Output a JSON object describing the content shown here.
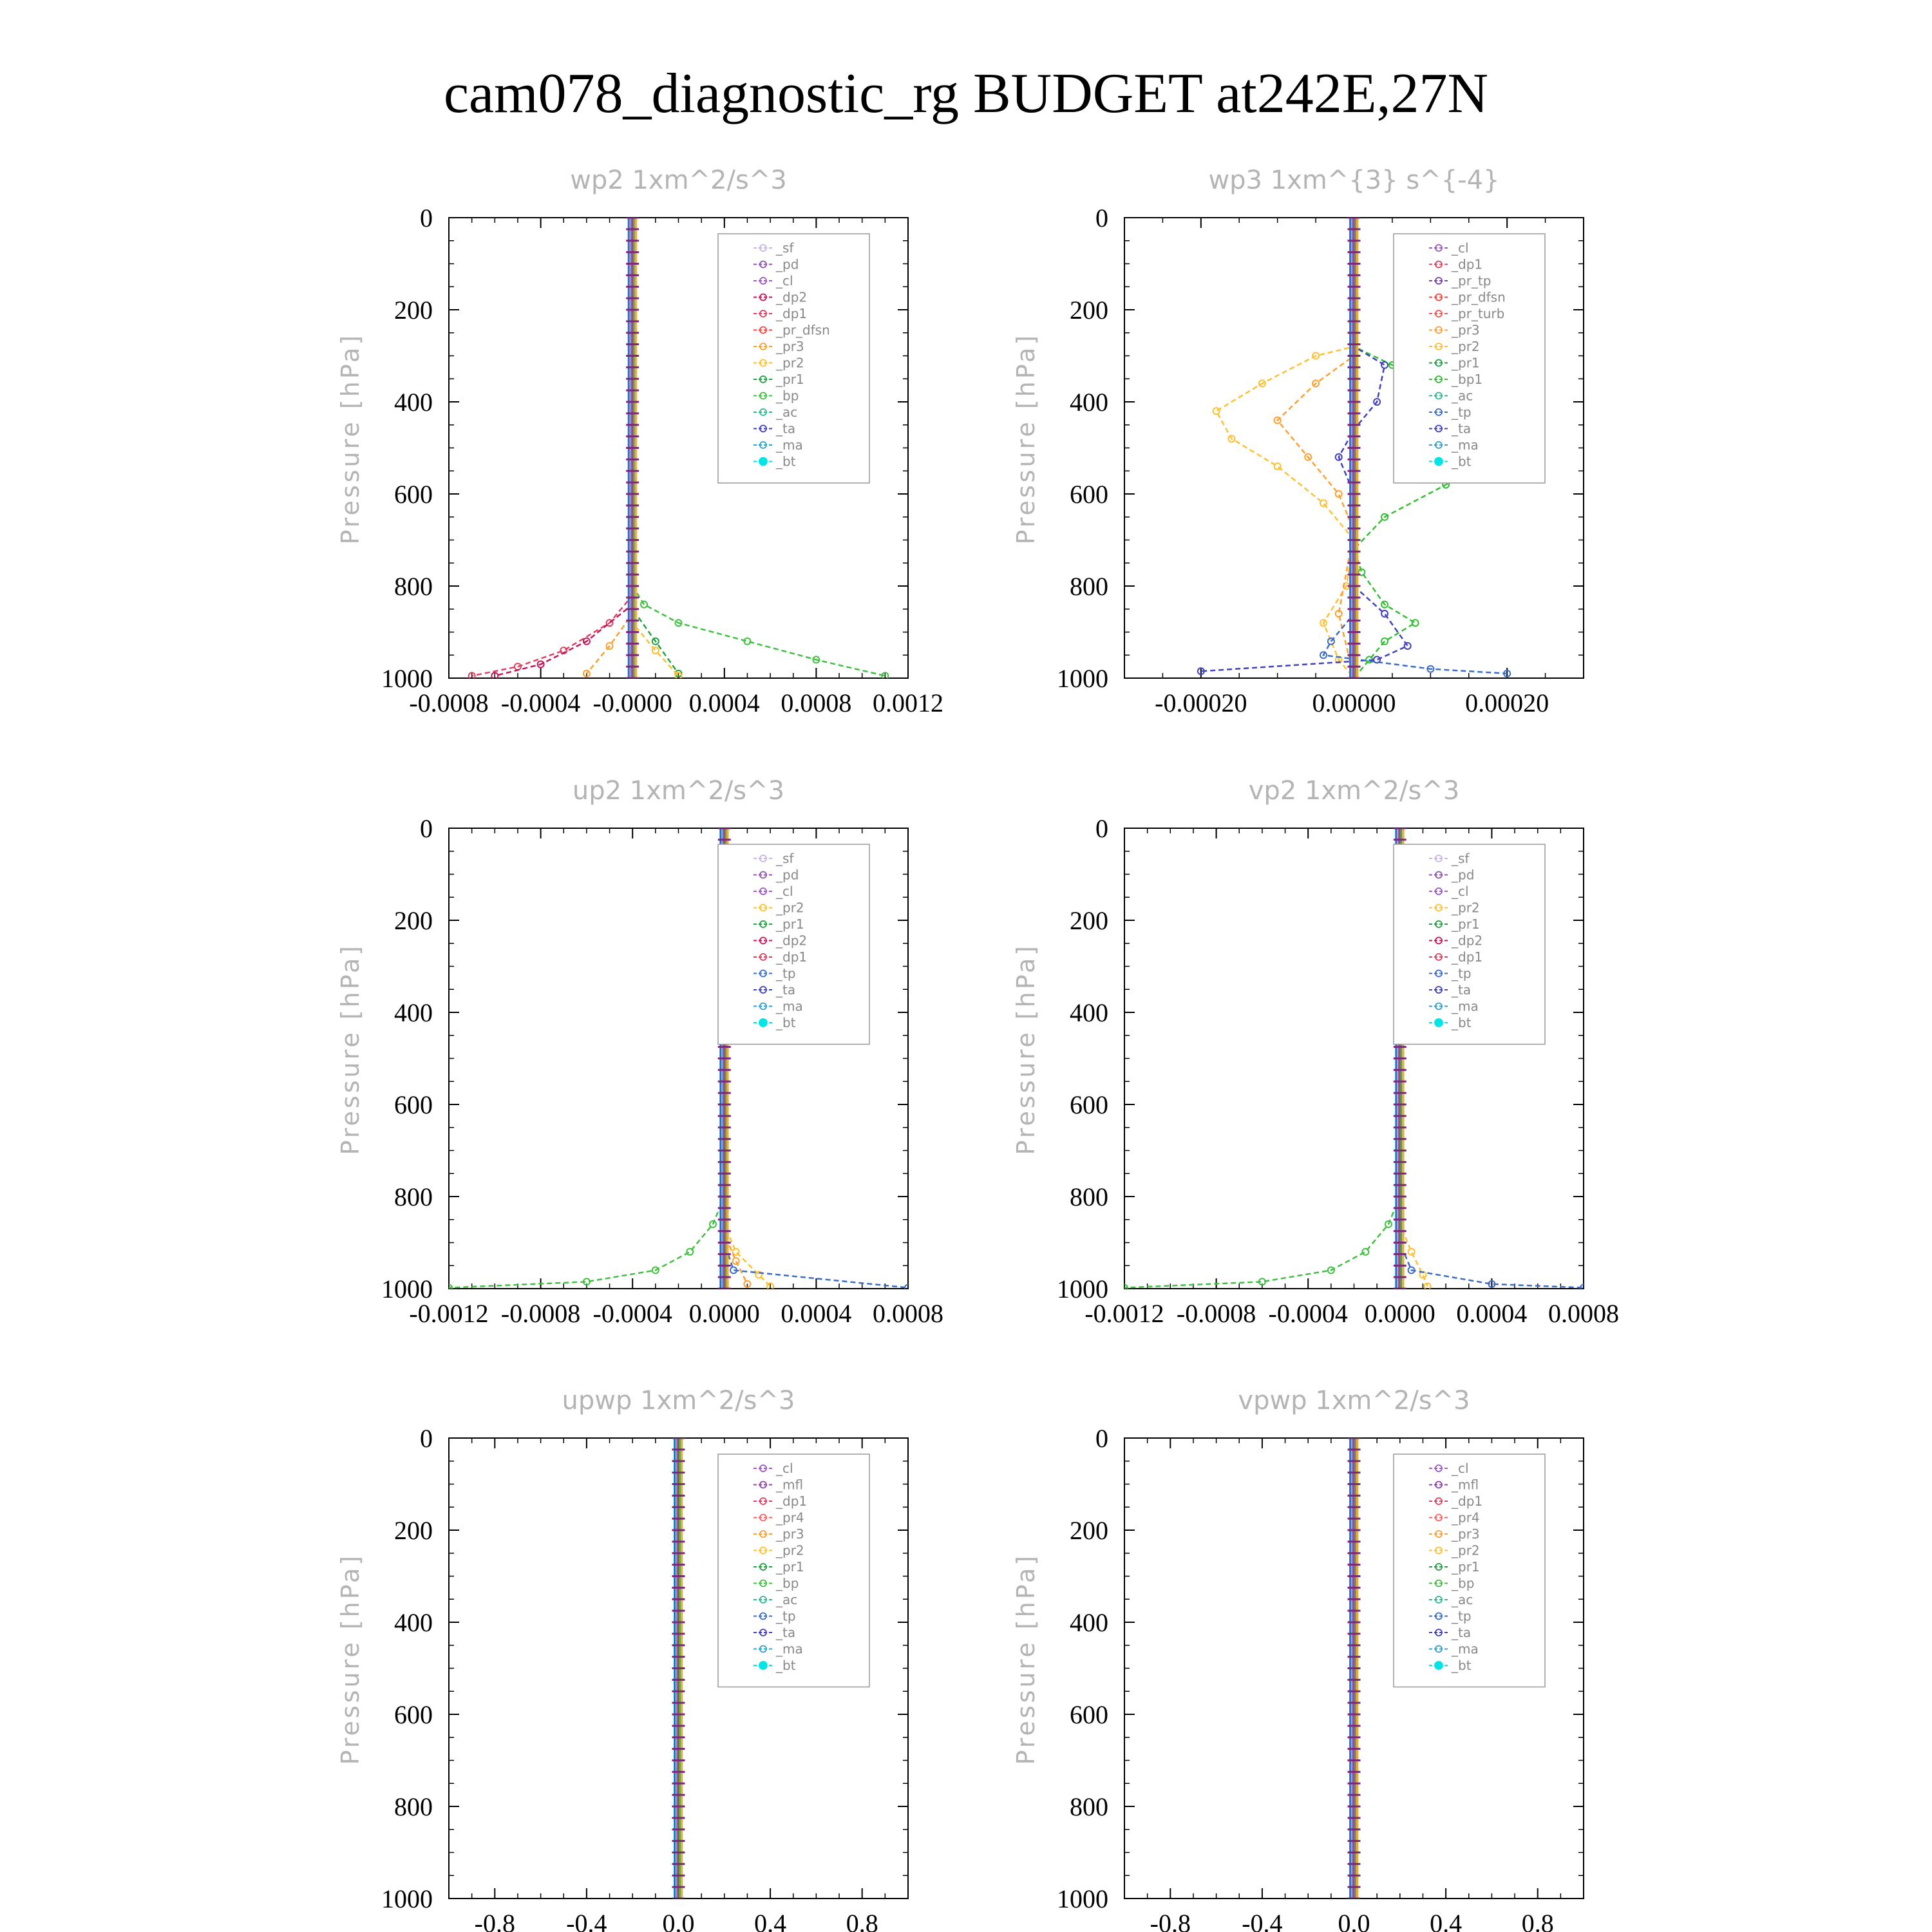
{
  "title": "cam078_diagnostic_rg  BUDGET at242E,27N",
  "colors": {
    "sf": "#c9b6e6",
    "pd": "#8f54b0",
    "cl": "#9b59c6",
    "dp2": "#c2185b",
    "dp1": "#e04060",
    "pr_dfsn": "#ff4040",
    "pr3": "#ff9f30",
    "pr2": "#ffc030",
    "pr1": "#20a040",
    "bp": "#40c040",
    "ac": "#30b890",
    "tp": "#3a6cc8",
    "ta": "#4040c0",
    "ma": "#30a0d0",
    "bt": "#00e5e5",
    "pr4": "#ff6060",
    "mfl": "#8e44ad",
    "pr_tp": "#7a3fb0",
    "pr_turb": "#ff5050",
    "bp1": "#30c030"
  },
  "chart_data": [
    {
      "type": "line",
      "title": "wp2   1xm^2/s^3",
      "ylabel": "Pressure [hPa]",
      "xlim": [
        -0.0008,
        0.0012
      ],
      "ylim": [
        1000,
        0
      ],
      "yticks": [
        "0",
        "200",
        "400",
        "600",
        "800",
        "1000"
      ],
      "xticks": [
        "-0.0008",
        "-0.0004",
        "-0.0000",
        "0.0004",
        "0.0008",
        "0.0012"
      ],
      "xtick_values": [
        -0.0008,
        -0.0004,
        0.0,
        0.0004,
        0.0008,
        0.0012
      ],
      "legend": [
        "_sf",
        "_pd",
        "_cl",
        "_dp2",
        "_dp1",
        "_pr_dfsn",
        "_pr3",
        "_pr2",
        "_pr1",
        "_bp",
        "_ac",
        "_ta",
        "_ma",
        "_bt"
      ],
      "legend_position": "top-right",
      "series": [
        {
          "name": "_bp",
          "color": "#40c040",
          "points": [
            [
              0,
              0
            ],
            [
              0,
              800
            ],
            [
              5e-05,
              840
            ],
            [
              0.0002,
              880
            ],
            [
              0.0005,
              920
            ],
            [
              0.0008,
              960
            ],
            [
              0.0011,
              995
            ]
          ]
        },
        {
          "name": "_pr1",
          "color": "#20a040",
          "points": [
            [
              0,
              0
            ],
            [
              0,
              850
            ],
            [
              0.0001,
              920
            ],
            [
              0.0002,
              990
            ]
          ]
        },
        {
          "name": "_pr2",
          "color": "#ffc030",
          "points": [
            [
              0,
              0
            ],
            [
              0,
              880
            ],
            [
              0.0001,
              940
            ],
            [
              0.0002,
              995
            ]
          ]
        },
        {
          "name": "_dp1",
          "color": "#e04060",
          "points": [
            [
              0,
              0
            ],
            [
              0,
              820
            ],
            [
              -0.0001,
              880
            ],
            [
              -0.0003,
              940
            ],
            [
              -0.0005,
              975
            ],
            [
              -0.0007,
              995
            ]
          ]
        },
        {
          "name": "_dp2",
          "color": "#c2185b",
          "points": [
            [
              0,
              0
            ],
            [
              0,
              840
            ],
            [
              -0.0002,
              920
            ],
            [
              -0.0004,
              970
            ],
            [
              -0.0006,
              995
            ]
          ]
        },
        {
          "name": "_pr3",
          "color": "#ff9f30",
          "points": [
            [
              0,
              0
            ],
            [
              0,
              860
            ],
            [
              -0.0001,
              930
            ],
            [
              -0.0002,
              990
            ]
          ]
        },
        {
          "name": "_ta",
          "color": "#4040c0",
          "points": [
            [
              0,
              0
            ],
            [
              0,
              1000
            ]
          ]
        }
      ]
    },
    {
      "type": "line",
      "title": "wp3   1xm^{3} s^{-4}",
      "ylabel": "Pressure [hPa]",
      "xlim": [
        -0.0003,
        0.0003
      ],
      "ylim": [
        1000,
        0
      ],
      "yticks": [
        "0",
        "200",
        "400",
        "600",
        "800",
        "1000"
      ],
      "xticks": [
        "-0.00020",
        "0.00000",
        "0.00020"
      ],
      "xtick_values": [
        -0.0002,
        0.0,
        0.0002
      ],
      "legend": [
        "_cl",
        "_dp1",
        "_pr_tp",
        "_pr_dfsn",
        "_pr_turb",
        "_pr3",
        "_pr2",
        "_pr1",
        "_bp1",
        "_ac",
        "_tp",
        "_ta",
        "_ma",
        "_bt"
      ],
      "legend_position": "top-right",
      "series": [
        {
          "name": "_bp1",
          "color": "#30c030",
          "points": [
            [
              0,
              0
            ],
            [
              0,
              280
            ],
            [
              5e-05,
              320
            ],
            [
              0.00012,
              380
            ],
            [
              0.0002,
              440
            ],
            [
              0.00022,
              480
            ],
            [
              0.00019,
              520
            ],
            [
              0.00012,
              580
            ],
            [
              4e-05,
              650
            ],
            [
              0,
              720
            ],
            [
              1e-05,
              770
            ],
            [
              4e-05,
              840
            ],
            [
              8e-05,
              880
            ],
            [
              4e-05,
              920
            ],
            [
              2e-05,
              960
            ],
            [
              0,
              1000
            ]
          ]
        },
        {
          "name": "_pr2",
          "color": "#ffc030",
          "points": [
            [
              0,
              0
            ],
            [
              0,
              280
            ],
            [
              -5e-05,
              300
            ],
            [
              -0.00012,
              360
            ],
            [
              -0.00018,
              420
            ],
            [
              -0.00016,
              480
            ],
            [
              -0.0001,
              540
            ],
            [
              -4e-05,
              620
            ],
            [
              0,
              700
            ],
            [
              -1e-05,
              800
            ],
            [
              -4e-05,
              880
            ],
            [
              -2e-05,
              960
            ],
            [
              0,
              1000
            ]
          ]
        },
        {
          "name": "_pr3",
          "color": "#ff9f30",
          "points": [
            [
              0,
              0
            ],
            [
              0,
              300
            ],
            [
              -5e-05,
              360
            ],
            [
              -0.0001,
              440
            ],
            [
              -6e-05,
              520
            ],
            [
              -2e-05,
              600
            ],
            [
              0,
              680
            ],
            [
              -2e-05,
              860
            ],
            [
              0,
              1000
            ]
          ]
        },
        {
          "name": "_ta",
          "color": "#4040c0",
          "points": [
            [
              0,
              0
            ],
            [
              0,
              280
            ],
            [
              4e-05,
              320
            ],
            [
              3e-05,
              400
            ],
            [
              0,
              460
            ],
            [
              -2e-05,
              520
            ],
            [
              0,
              600
            ],
            [
              0,
              800
            ],
            [
              4e-05,
              860
            ],
            [
              7e-05,
              930
            ],
            [
              3e-05,
              960
            ],
            [
              -0.0002,
              985
            ]
          ]
        },
        {
          "name": "_tp",
          "color": "#3a6cc8",
          "points": [
            [
              0,
              0
            ],
            [
              0,
              860
            ],
            [
              -3e-05,
              920
            ],
            [
              -4e-05,
              950
            ],
            [
              0.0001,
              980
            ],
            [
              0.0002,
              990
            ]
          ]
        }
      ]
    },
    {
      "type": "line",
      "title": "up2   1xm^2/s^3",
      "ylabel": "Pressure [hPa]",
      "xlim": [
        -0.0012,
        0.0008
      ],
      "ylim": [
        1000,
        0
      ],
      "yticks": [
        "0",
        "200",
        "400",
        "600",
        "800",
        "1000"
      ],
      "xticks": [
        "-0.0012",
        "-0.0008",
        "-0.0004",
        "0.0000",
        "0.0004",
        "0.0008"
      ],
      "xtick_values": [
        -0.0012,
        -0.0008,
        -0.0004,
        0.0,
        0.0004,
        0.0008
      ],
      "legend": [
        "_sf",
        "_pd",
        "_cl",
        "_pr2",
        "_pr1",
        "_dp2",
        "_dp1",
        "_tp",
        "_ta",
        "_ma",
        "_bt"
      ],
      "legend_position": "top-right",
      "series": [
        {
          "name": "_dp1",
          "color": "#40c040",
          "points": [
            [
              0,
              0
            ],
            [
              0,
              800
            ],
            [
              -5e-05,
              860
            ],
            [
              -0.00015,
              920
            ],
            [
              -0.0003,
              960
            ],
            [
              -0.0006,
              985
            ],
            [
              -0.0012,
              998
            ]
          ]
        },
        {
          "name": "_pr1",
          "color": "#ffc030",
          "points": [
            [
              0,
              0
            ],
            [
              0,
              860
            ],
            [
              5e-05,
              920
            ],
            [
              0.00015,
              970
            ],
            [
              0.0002,
              995
            ]
          ]
        },
        {
          "name": "_pr2",
          "color": "#ff9f30",
          "points": [
            [
              0,
              0
            ],
            [
              0,
              880
            ],
            [
              5e-05,
              940
            ],
            [
              0.0001,
              990
            ]
          ]
        },
        {
          "name": "_tp",
          "color": "#3a6cc8",
          "points": [
            [
              0,
              0
            ],
            [
              0,
              900
            ],
            [
              4e-05,
              960
            ],
            [
              0.0008,
              998
            ]
          ]
        },
        {
          "name": "_sf",
          "color": "#c2185b",
          "points": [
            [
              0,
              0
            ],
            [
              0,
              1000
            ]
          ]
        }
      ]
    },
    {
      "type": "line",
      "title": "vp2   1xm^2/s^3",
      "ylabel": "Pressure [hPa]",
      "xlim": [
        -0.0012,
        0.0008
      ],
      "ylim": [
        1000,
        0
      ],
      "yticks": [
        "0",
        "200",
        "400",
        "600",
        "800",
        "1000"
      ],
      "xticks": [
        "-0.0012",
        "-0.0008",
        "-0.0004",
        "0.0000",
        "0.0004",
        "0.0008"
      ],
      "xtick_values": [
        -0.0012,
        -0.0008,
        -0.0004,
        0.0,
        0.0004,
        0.0008
      ],
      "legend": [
        "_sf",
        "_pd",
        "_cl",
        "_pr2",
        "_pr1",
        "_dp2",
        "_dp1",
        "_tp",
        "_ta",
        "_ma",
        "_bt"
      ],
      "legend_position": "top-right",
      "series": [
        {
          "name": "_dp1",
          "color": "#40c040",
          "points": [
            [
              0,
              0
            ],
            [
              0,
              800
            ],
            [
              -5e-05,
              860
            ],
            [
              -0.00015,
              920
            ],
            [
              -0.0003,
              960
            ],
            [
              -0.0006,
              985
            ],
            [
              -0.0012,
              998
            ]
          ]
        },
        {
          "name": "_pr1",
          "color": "#ffc030",
          "points": [
            [
              0,
              0
            ],
            [
              0,
              860
            ],
            [
              5e-05,
              920
            ],
            [
              0.0001,
              970
            ],
            [
              0.00012,
              995
            ]
          ]
        },
        {
          "name": "_tp",
          "color": "#3a6cc8",
          "points": [
            [
              0,
              0
            ],
            [
              0,
              900
            ],
            [
              5e-05,
              960
            ],
            [
              0.0004,
              990
            ],
            [
              0.0008,
              998
            ]
          ]
        },
        {
          "name": "_sf",
          "color": "#c2185b",
          "points": [
            [
              0,
              0
            ],
            [
              0,
              1000
            ]
          ]
        }
      ]
    },
    {
      "type": "line",
      "title": "upwp   1xm^2/s^3",
      "ylabel": "Pressure [hPa]",
      "xlim": [
        -1,
        1
      ],
      "ylim": [
        1000,
        0
      ],
      "yticks": [
        "0",
        "200",
        "400",
        "600",
        "800",
        "1000"
      ],
      "xticks": [
        "-0.8",
        "-0.4",
        "0.0",
        "0.4",
        "0.8"
      ],
      "xtick_values": [
        -0.8,
        -0.4,
        0.0,
        0.4,
        0.8
      ],
      "legend": [
        "_cl",
        "_mfl",
        "_dp1",
        "_pr4",
        "_pr3",
        "_pr2",
        "_pr1",
        "_bp",
        "_ac",
        "_tp",
        "_ta",
        "_ma",
        "_bt"
      ],
      "legend_position": "top-right",
      "series": [
        {
          "name": "_dp1",
          "color": "#c2185b",
          "points": [
            [
              0,
              0
            ],
            [
              0,
              1000
            ]
          ]
        }
      ]
    },
    {
      "type": "line",
      "title": "vpwp   1xm^2/s^3",
      "ylabel": "Pressure [hPa]",
      "xlim": [
        -1,
        1
      ],
      "ylim": [
        1000,
        0
      ],
      "yticks": [
        "0",
        "200",
        "400",
        "600",
        "800",
        "1000"
      ],
      "xticks": [
        "-0.8",
        "-0.4",
        "0.0",
        "0.4",
        "0.8"
      ],
      "xtick_values": [
        -0.8,
        -0.4,
        0.0,
        0.4,
        0.8
      ],
      "legend": [
        "_cl",
        "_mfl",
        "_dp1",
        "_pr4",
        "_pr3",
        "_pr2",
        "_pr1",
        "_bp",
        "_ac",
        "_tp",
        "_ta",
        "_ma",
        "_bt"
      ],
      "legend_position": "top-right",
      "series": [
        {
          "name": "_dp1",
          "color": "#c2185b",
          "points": [
            [
              0,
              0
            ],
            [
              0,
              1000
            ]
          ]
        }
      ]
    }
  ]
}
